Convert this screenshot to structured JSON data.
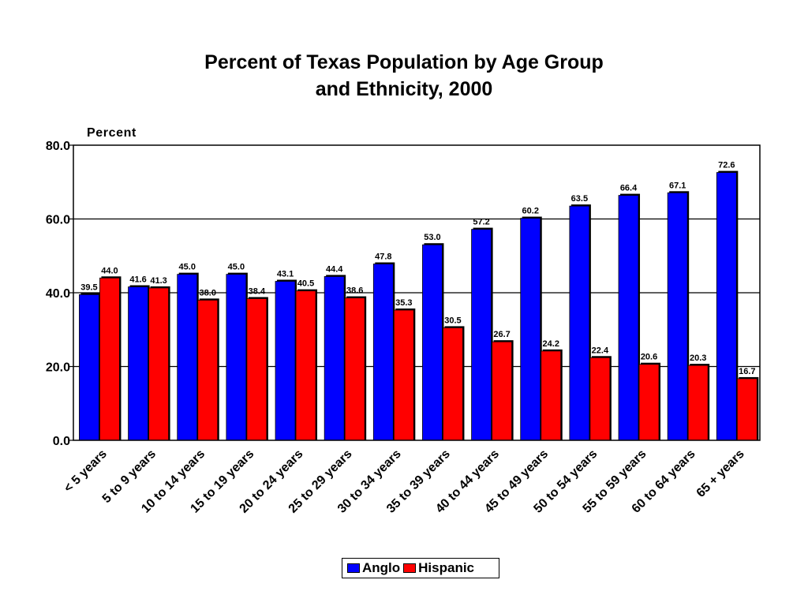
{
  "chart_data": {
    "type": "bar",
    "title_line1": "Percent of Texas Population by Age Group",
    "title_line2": "and Ethnicity, 2000",
    "ylabel": "Percent",
    "ylim": [
      0,
      80
    ],
    "yticks": [
      "0.0",
      "20.0",
      "40.0",
      "60.0",
      "80.0"
    ],
    "grid": true,
    "legend_position": "bottom",
    "categories": [
      "< 5 years",
      "5 to 9 years",
      "10 to 14 years",
      "15 to 19 years",
      "20 to 24 years",
      "25 to 29 years",
      "30 to 34 years",
      "35 to 39 years",
      "40 to 44 years",
      "45 to 49 years",
      "50 to 54 years",
      "55 to 59 years",
      "60 to 64 years",
      "65 + years"
    ],
    "series": [
      {
        "name": "Anglo",
        "color": "#0000ff",
        "values": [
          39.5,
          41.6,
          45.0,
          45.0,
          43.1,
          44.4,
          47.8,
          53.0,
          57.2,
          60.2,
          63.5,
          66.4,
          67.1,
          72.6
        ],
        "labels": [
          "39.5",
          "41.6",
          "45.0",
          "45.0",
          "43.1",
          "44.4",
          "47.8",
          "53.0",
          "57.2",
          "60.2",
          "63.5",
          "66.4",
          "67.1",
          "72.6"
        ]
      },
      {
        "name": "Hispanic",
        "color": "#ff0000",
        "values": [
          44.0,
          41.3,
          38.0,
          38.4,
          40.5,
          38.6,
          35.3,
          30.5,
          26.7,
          24.2,
          22.4,
          20.6,
          20.3,
          16.7
        ],
        "labels": [
          "44.0",
          "41.3",
          "38.0",
          "38.4",
          "40.5",
          "38.6",
          "35.3",
          "30.5",
          "26.7",
          "24.2",
          "22.4",
          "20.6",
          "20.3",
          "16.7"
        ]
      }
    ]
  }
}
